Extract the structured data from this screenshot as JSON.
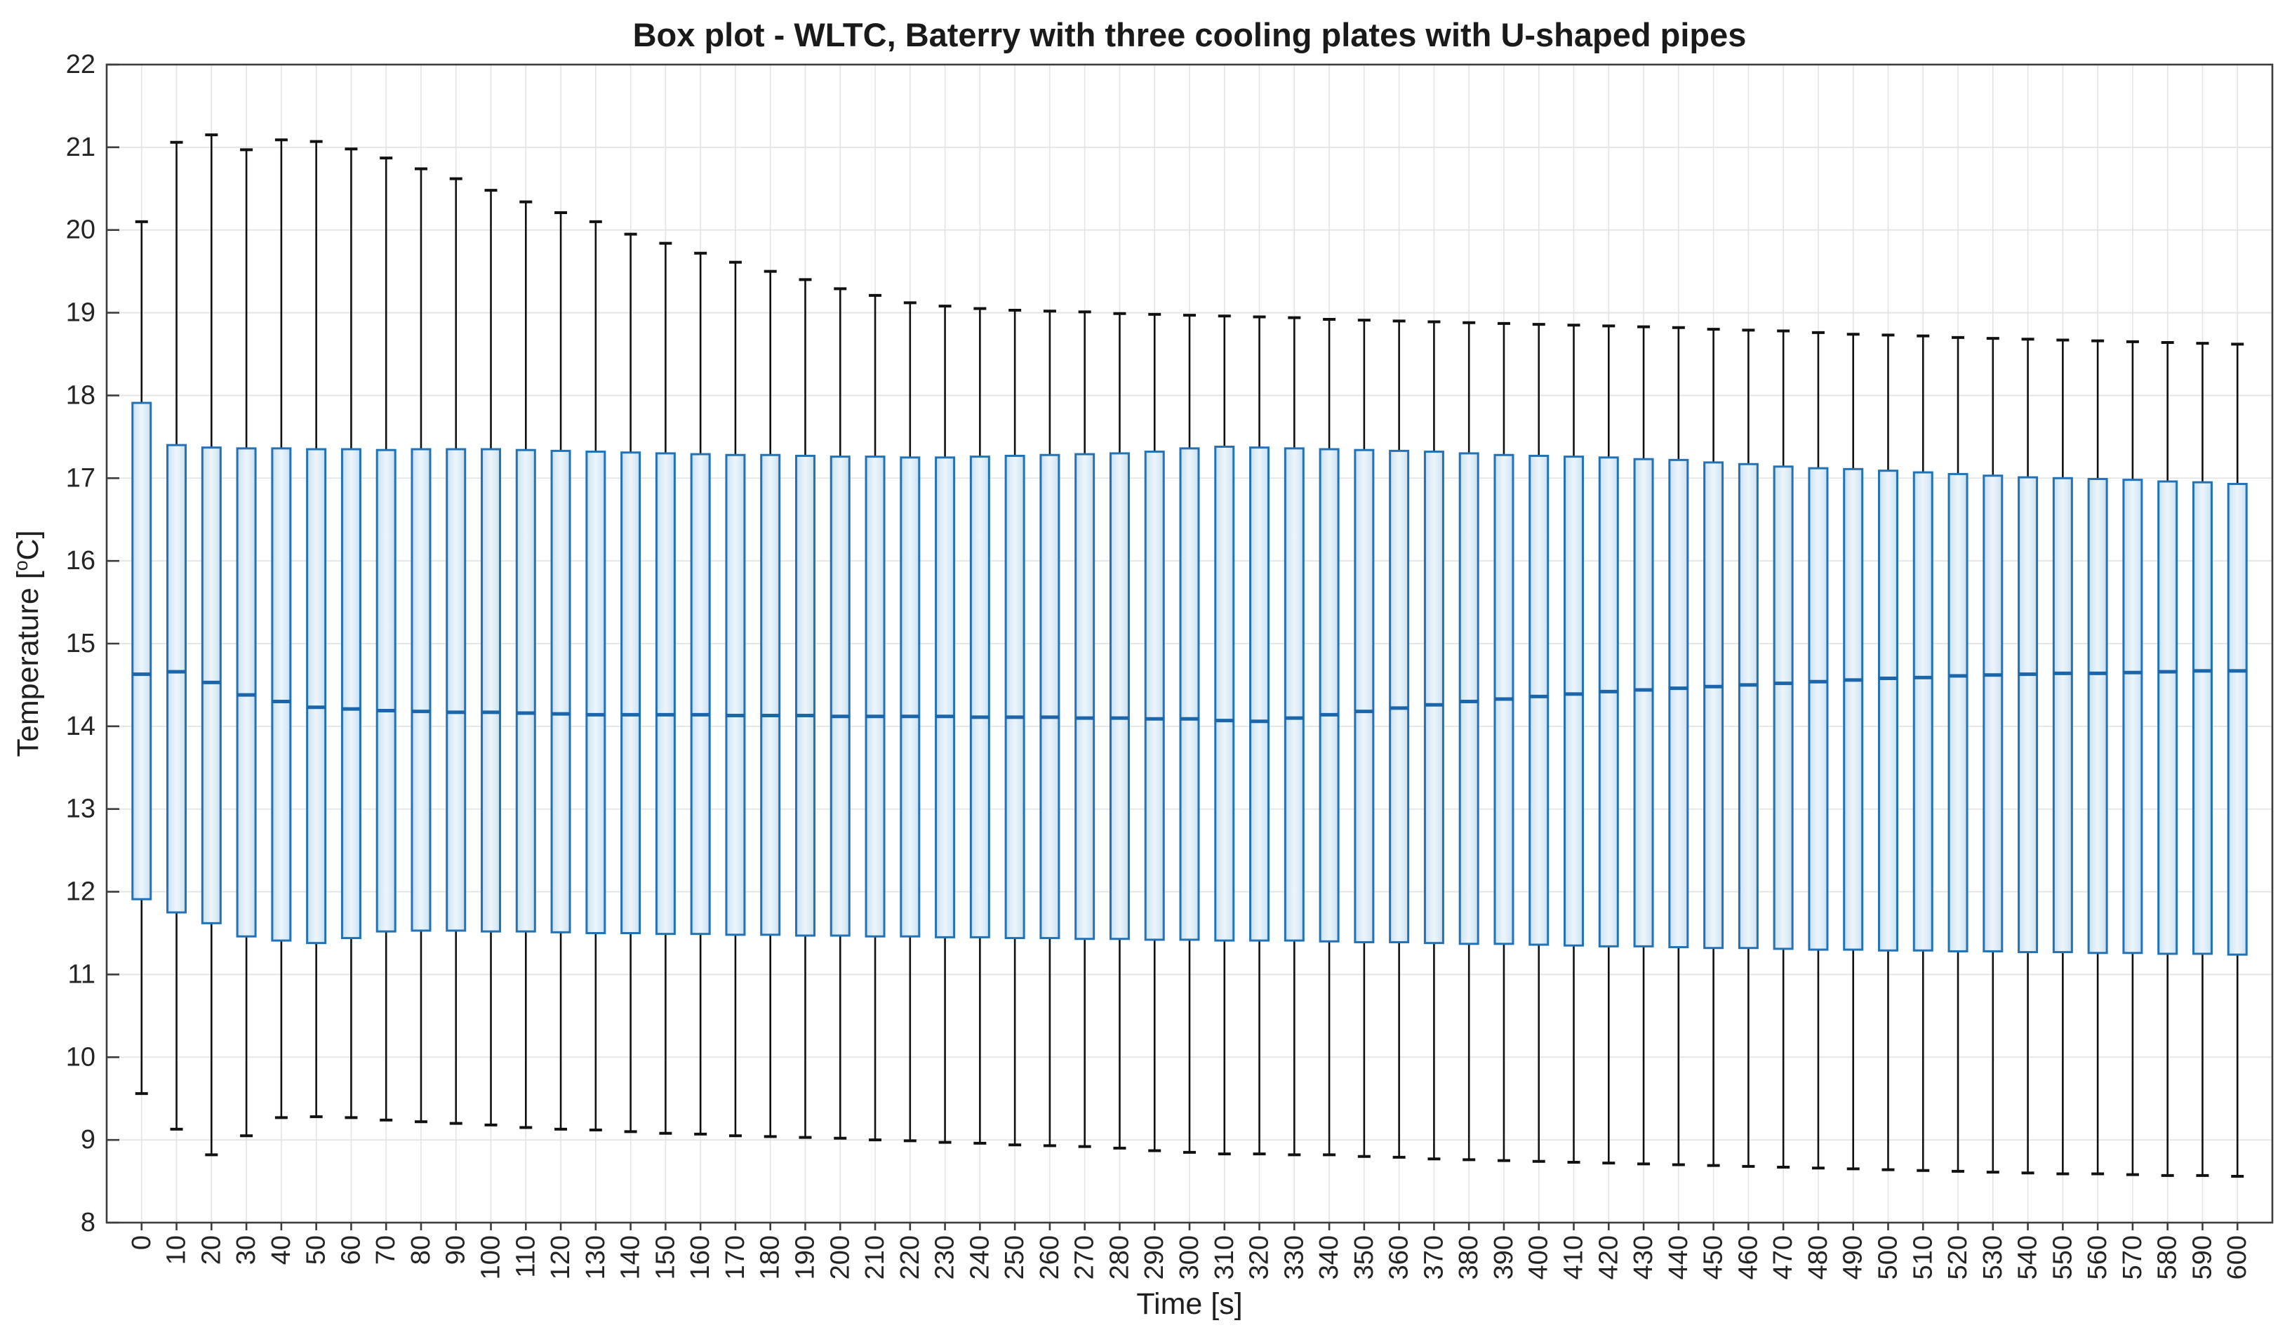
{
  "chart_data": {
    "type": "boxplot",
    "title": "Box plot - WLTC, Baterry with three cooling plates with U-shaped pipes",
    "xlabel": "Time [s]",
    "ylabel": "Temperature [°C]",
    "ylabel_pre": "Temperature [",
    "ylabel_sup": "o",
    "ylabel_post": "C]",
    "ylim": [
      8,
      22
    ],
    "yticks": [
      8,
      9,
      10,
      11,
      12,
      13,
      14,
      15,
      16,
      17,
      18,
      19,
      20,
      21,
      22
    ],
    "grid": true,
    "legend": "none",
    "categories": [
      "0",
      "10",
      "20",
      "30",
      "40",
      "50",
      "60",
      "70",
      "80",
      "90",
      "100",
      "110",
      "120",
      "130",
      "140",
      "150",
      "160",
      "170",
      "180",
      "190",
      "200",
      "210",
      "220",
      "230",
      "240",
      "250",
      "260",
      "270",
      "280",
      "290",
      "300",
      "310",
      "320",
      "330",
      "340",
      "350",
      "360",
      "370",
      "380",
      "390",
      "400",
      "410",
      "420",
      "430",
      "440",
      "450",
      "460",
      "470",
      "480",
      "490",
      "500",
      "510",
      "520",
      "530",
      "540",
      "550",
      "560",
      "570",
      "580",
      "590",
      "600"
    ],
    "boxes": {
      "whisker_high": [
        20.1,
        21.06,
        21.15,
        20.97,
        21.09,
        21.07,
        20.98,
        20.87,
        20.74,
        20.62,
        20.48,
        20.34,
        20.21,
        20.1,
        19.95,
        19.84,
        19.72,
        19.61,
        19.5,
        19.4,
        19.29,
        19.21,
        19.12,
        19.08,
        19.05,
        19.03,
        19.02,
        19.01,
        18.99,
        18.98,
        18.97,
        18.96,
        18.95,
        18.94,
        18.92,
        18.91,
        18.9,
        18.89,
        18.88,
        18.87,
        18.86,
        18.85,
        18.84,
        18.83,
        18.82,
        18.8,
        18.79,
        18.78,
        18.76,
        18.74,
        18.73,
        18.72,
        18.7,
        18.69,
        18.68,
        18.67,
        18.66,
        18.65,
        18.64,
        18.63,
        18.62
      ],
      "q3": [
        17.91,
        17.4,
        17.37,
        17.36,
        17.36,
        17.35,
        17.35,
        17.34,
        17.35,
        17.35,
        17.35,
        17.34,
        17.33,
        17.32,
        17.31,
        17.3,
        17.29,
        17.28,
        17.28,
        17.27,
        17.26,
        17.26,
        17.25,
        17.25,
        17.26,
        17.27,
        17.28,
        17.29,
        17.3,
        17.32,
        17.36,
        17.38,
        17.37,
        17.36,
        17.35,
        17.34,
        17.33,
        17.32,
        17.3,
        17.28,
        17.27,
        17.26,
        17.25,
        17.23,
        17.22,
        17.19,
        17.17,
        17.14,
        17.12,
        17.11,
        17.09,
        17.07,
        17.05,
        17.03,
        17.01,
        17.0,
        16.99,
        16.98,
        16.96,
        16.95,
        16.93
      ],
      "median": [
        14.63,
        14.66,
        14.53,
        14.38,
        14.3,
        14.23,
        14.21,
        14.19,
        14.18,
        14.17,
        14.17,
        14.16,
        14.15,
        14.14,
        14.14,
        14.14,
        14.14,
        14.13,
        14.13,
        14.13,
        14.12,
        14.12,
        14.12,
        14.12,
        14.11,
        14.11,
        14.11,
        14.1,
        14.1,
        14.09,
        14.09,
        14.07,
        14.06,
        14.1,
        14.14,
        14.18,
        14.22,
        14.26,
        14.3,
        14.33,
        14.36,
        14.39,
        14.42,
        14.44,
        14.46,
        14.48,
        14.5,
        14.52,
        14.54,
        14.56,
        14.58,
        14.59,
        14.61,
        14.62,
        14.63,
        14.64,
        14.64,
        14.65,
        14.66,
        14.67,
        14.67
      ],
      "q1": [
        11.91,
        11.75,
        11.62,
        11.46,
        11.41,
        11.38,
        11.44,
        11.52,
        11.53,
        11.53,
        11.52,
        11.52,
        11.51,
        11.5,
        11.5,
        11.49,
        11.49,
        11.48,
        11.48,
        11.47,
        11.47,
        11.46,
        11.46,
        11.45,
        11.45,
        11.44,
        11.44,
        11.43,
        11.43,
        11.42,
        11.42,
        11.41,
        11.41,
        11.41,
        11.4,
        11.39,
        11.39,
        11.38,
        11.37,
        11.37,
        11.36,
        11.35,
        11.34,
        11.34,
        11.33,
        11.32,
        11.32,
        11.31,
        11.3,
        11.3,
        11.29,
        11.29,
        11.28,
        11.28,
        11.27,
        11.27,
        11.26,
        11.26,
        11.25,
        11.25,
        11.24
      ],
      "whisker_low": [
        9.56,
        9.13,
        8.82,
        9.05,
        9.27,
        9.28,
        9.27,
        9.24,
        9.22,
        9.2,
        9.18,
        9.15,
        9.13,
        9.12,
        9.1,
        9.08,
        9.07,
        9.05,
        9.04,
        9.03,
        9.02,
        9.0,
        8.99,
        8.97,
        8.96,
        8.94,
        8.93,
        8.92,
        8.9,
        8.87,
        8.85,
        8.83,
        8.83,
        8.82,
        8.82,
        8.8,
        8.79,
        8.77,
        8.76,
        8.75,
        8.74,
        8.73,
        8.72,
        8.71,
        8.7,
        8.69,
        8.68,
        8.67,
        8.66,
        8.65,
        8.64,
        8.63,
        8.62,
        8.61,
        8.6,
        8.59,
        8.59,
        8.58,
        8.57,
        8.57,
        8.56
      ]
    },
    "colors": {
      "box_fill": "#d9eaf6",
      "box_fill_center": "#edf5fb",
      "box_fill_edge": "#c6dcee",
      "box_edge": "#2272b6",
      "median": "#1b66ab",
      "whisker": "#111111",
      "grid": "#e3e3e3",
      "axis": "#3d3d3d",
      "tick_text": "#242424"
    }
  }
}
